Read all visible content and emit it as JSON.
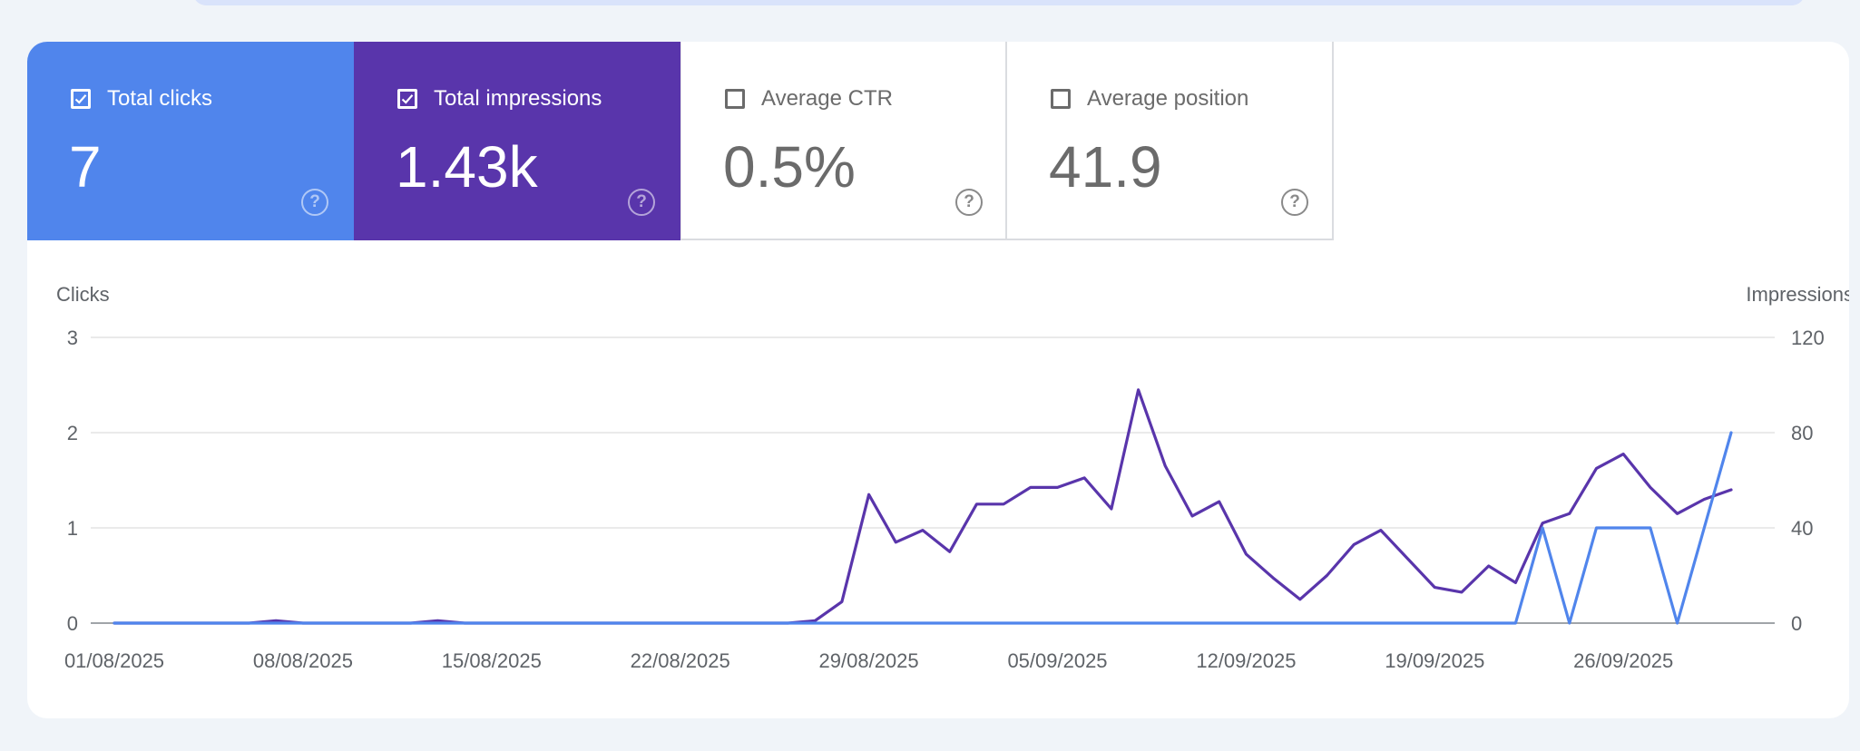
{
  "metrics": {
    "clicks": {
      "label": "Total clicks",
      "value": "7",
      "checked": true,
      "color": "#5085ec"
    },
    "impressions": {
      "label": "Total impressions",
      "value": "1.43k",
      "checked": true,
      "color": "#5935ab"
    },
    "ctr": {
      "label": "Average CTR",
      "value": "0.5%",
      "checked": false
    },
    "position": {
      "label": "Average position",
      "value": "41.9",
      "checked": false
    },
    "help_icon": "help-circle-icon",
    "check_icon": "checkbox-icon"
  },
  "chart_data": {
    "type": "line",
    "x": [
      "01/08/2025",
      "02/08/2025",
      "03/08/2025",
      "04/08/2025",
      "05/08/2025",
      "06/08/2025",
      "07/08/2025",
      "08/08/2025",
      "09/08/2025",
      "10/08/2025",
      "11/08/2025",
      "12/08/2025",
      "13/08/2025",
      "14/08/2025",
      "15/08/2025",
      "16/08/2025",
      "17/08/2025",
      "18/08/2025",
      "19/08/2025",
      "20/08/2025",
      "21/08/2025",
      "22/08/2025",
      "23/08/2025",
      "24/08/2025",
      "25/08/2025",
      "26/08/2025",
      "27/08/2025",
      "28/08/2025",
      "29/08/2025",
      "30/08/2025",
      "31/08/2025",
      "01/09/2025",
      "02/09/2025",
      "03/09/2025",
      "04/09/2025",
      "05/09/2025",
      "06/09/2025",
      "07/09/2025",
      "08/09/2025",
      "09/09/2025",
      "10/09/2025",
      "11/09/2025",
      "12/09/2025",
      "13/09/2025",
      "14/09/2025",
      "15/09/2025",
      "16/09/2025",
      "17/09/2025",
      "18/09/2025",
      "19/09/2025",
      "20/09/2025",
      "21/09/2025",
      "22/09/2025",
      "23/09/2025",
      "24/09/2025",
      "25/09/2025",
      "26/09/2025",
      "27/09/2025",
      "28/09/2025",
      "29/09/2025",
      "30/09/2025"
    ],
    "x_tick_labels": [
      "01/08/2025",
      "08/08/2025",
      "15/08/2025",
      "22/08/2025",
      "29/08/2025",
      "05/09/2025",
      "12/09/2025",
      "19/09/2025",
      "26/09/2025"
    ],
    "y_left": {
      "label": "Clicks",
      "ticks": [
        "0",
        "1",
        "2",
        "3"
      ],
      "lim": [
        0,
        3
      ]
    },
    "y_right": {
      "label": "Impressions",
      "ticks": [
        "0",
        "40",
        "80",
        "120"
      ],
      "lim": [
        0,
        120
      ]
    },
    "grid": true,
    "series": [
      {
        "name": "Impressions",
        "axis": "right",
        "color": "#5935ab",
        "values": [
          0,
          0,
          0,
          0,
          0,
          0,
          1,
          0,
          0,
          0,
          0,
          0,
          1,
          0,
          0,
          0,
          0,
          0,
          0,
          0,
          0,
          0,
          0,
          0,
          0,
          0,
          1,
          9,
          54,
          34,
          39,
          30,
          50,
          50,
          57,
          57,
          61,
          48,
          98,
          66,
          45,
          51,
          29,
          19,
          10,
          20,
          33,
          39,
          27,
          15,
          13,
          24,
          17,
          42,
          46,
          65,
          71,
          57,
          46,
          52,
          56
        ]
      },
      {
        "name": "Clicks",
        "axis": "left",
        "color": "#5085ec",
        "values": [
          0,
          0,
          0,
          0,
          0,
          0,
          0,
          0,
          0,
          0,
          0,
          0,
          0,
          0,
          0,
          0,
          0,
          0,
          0,
          0,
          0,
          0,
          0,
          0,
          0,
          0,
          0,
          0,
          0,
          0,
          0,
          0,
          0,
          0,
          0,
          0,
          0,
          0,
          0,
          0,
          0,
          0,
          0,
          0,
          0,
          0,
          0,
          0,
          0,
          0,
          0,
          0,
          0,
          1,
          0,
          1,
          1,
          1,
          0,
          1,
          2
        ]
      }
    ]
  }
}
